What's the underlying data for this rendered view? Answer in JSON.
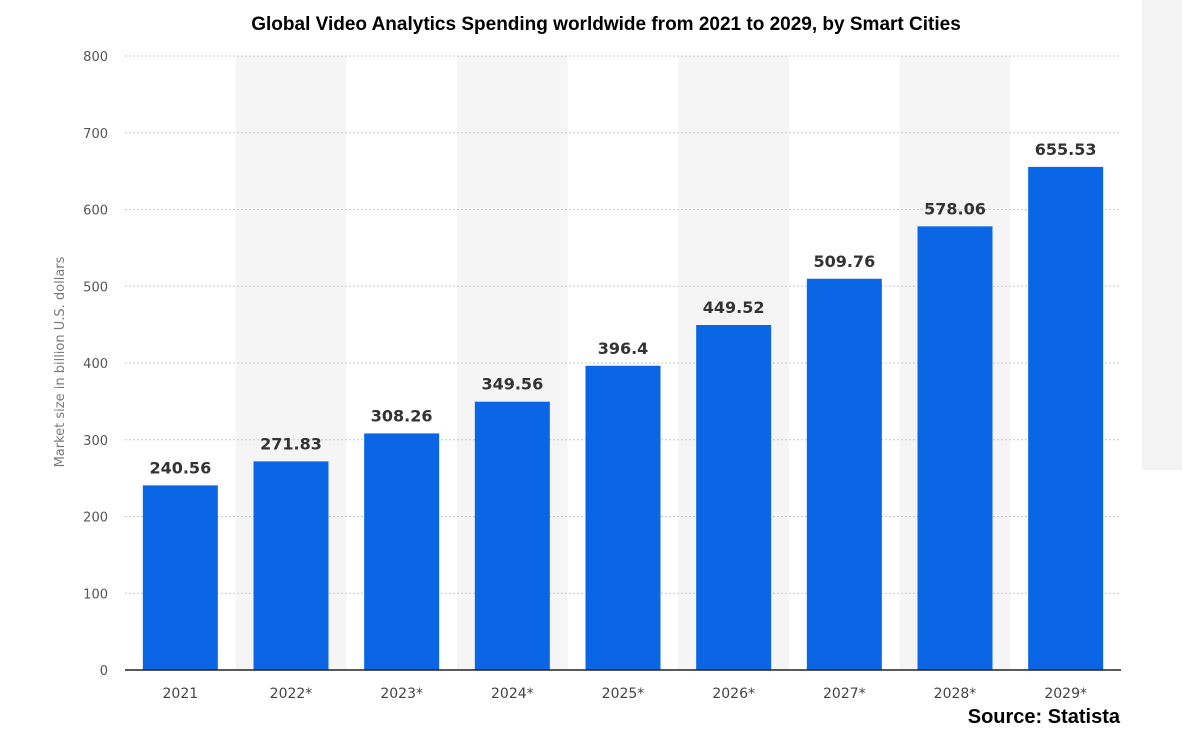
{
  "chart_data": {
    "type": "bar",
    "title": "Global Video Analytics Spending worldwide from 2021 to 2029, by Smart Cities",
    "ylabel": "Market size in billion U.S. dollars",
    "xlabel": "",
    "categories": [
      "2021",
      "2022*",
      "2023*",
      "2024*",
      "2025*",
      "2026*",
      "2027*",
      "2028*",
      "2029*"
    ],
    "values": [
      240.56,
      271.83,
      308.26,
      349.56,
      396.4,
      449.52,
      509.76,
      578.06,
      655.53
    ],
    "value_labels": [
      "240.56",
      "271.83",
      "308.26",
      "349.56",
      "396.4",
      "449.52",
      "509.76",
      "578.06",
      "655.53"
    ],
    "ylim": [
      0,
      800
    ],
    "yticks": [
      "0",
      "100",
      "200",
      "300",
      "400",
      "500",
      "600",
      "700",
      "800"
    ],
    "grid": true,
    "bar_color": "#0a66e4",
    "source": "Source: Statista"
  }
}
